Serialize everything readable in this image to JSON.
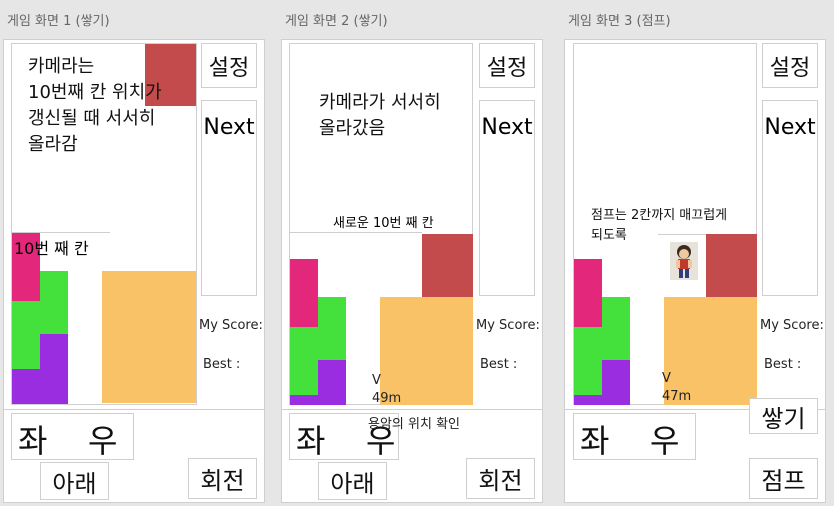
{
  "screens": [
    {
      "title": "게임 화면 1 (쌓기)",
      "note": "카메라는\n10번째 칸 위치가\n갱신될 때 서서히\n올라감",
      "row_label": "10번 째 칸",
      "settings": "설정",
      "next": "Next",
      "my_score": "My Score:",
      "best": "Best :",
      "left": "좌",
      "right": "우",
      "down": "아래",
      "rotate": "회전"
    },
    {
      "title": "게임 화면 2 (쌓기)",
      "note": "카메라가 서서히\n올라갔음",
      "row_label": "새로운 10번 째 칸",
      "settings": "설정",
      "next": "Next",
      "my_score": "My Score:",
      "best": "Best :",
      "height_marker": "V",
      "height_value": "49m",
      "height_caption": "용암의 위치 확인",
      "left": "좌",
      "right": "우",
      "down": "아래",
      "rotate": "회전"
    },
    {
      "title": "게임 화면 3 (점프)",
      "note": "점프는 2칸까지 매끄럽게\n되도록",
      "settings": "설정",
      "next": "Next",
      "my_score": "My Score:",
      "best": "Best :",
      "height_marker": "V",
      "height_value": "47m",
      "left": "좌",
      "right": "우",
      "stack": "쌓기",
      "jump": "점프",
      "character_icon": "character-sprite"
    }
  ],
  "colors": {
    "red": "#c44b4b",
    "orange": "#f9c266",
    "magenta": "#e3287b",
    "green": "#44e03c",
    "purple": "#9a2de0"
  }
}
